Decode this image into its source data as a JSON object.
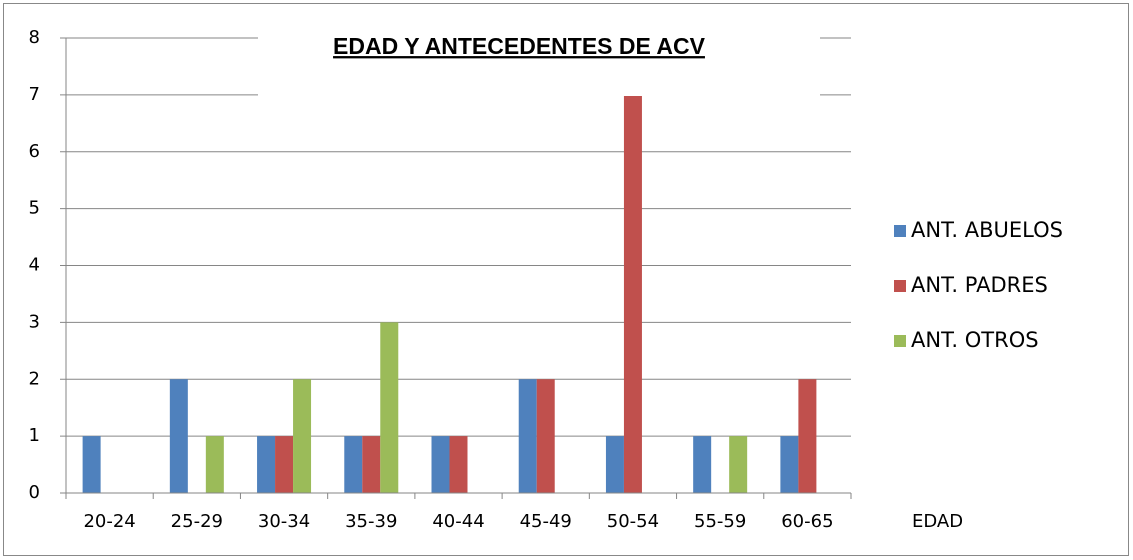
{
  "chart_data": {
    "type": "bar",
    "title": "EDAD Y ANTECEDENTES DE ACV",
    "x_label": "EDAD",
    "categories": [
      "20-24",
      "25-29",
      "30-34",
      "35-39",
      "40-44",
      "45-49",
      "50-54",
      "55-59",
      "60-65"
    ],
    "series": [
      {
        "name": "ANT. ABUELOS",
        "color": "#4f81bd",
        "values": [
          1,
          2,
          1,
          1,
          1,
          2,
          1,
          1,
          1
        ]
      },
      {
        "name": "ANT. PADRES",
        "color": "#c0504d",
        "values": [
          0,
          0,
          1,
          1,
          1,
          2,
          7,
          0,
          2
        ]
      },
      {
        "name": "ANT. OTROS",
        "color": "#9bbb59",
        "values": [
          0,
          1,
          2,
          3,
          0,
          0,
          0,
          1,
          0
        ]
      }
    ],
    "ylim": [
      0,
      8
    ],
    "yticks": [
      0,
      1,
      2,
      3,
      4,
      5,
      6,
      7,
      8
    ],
    "grid": true,
    "legend": "right"
  }
}
